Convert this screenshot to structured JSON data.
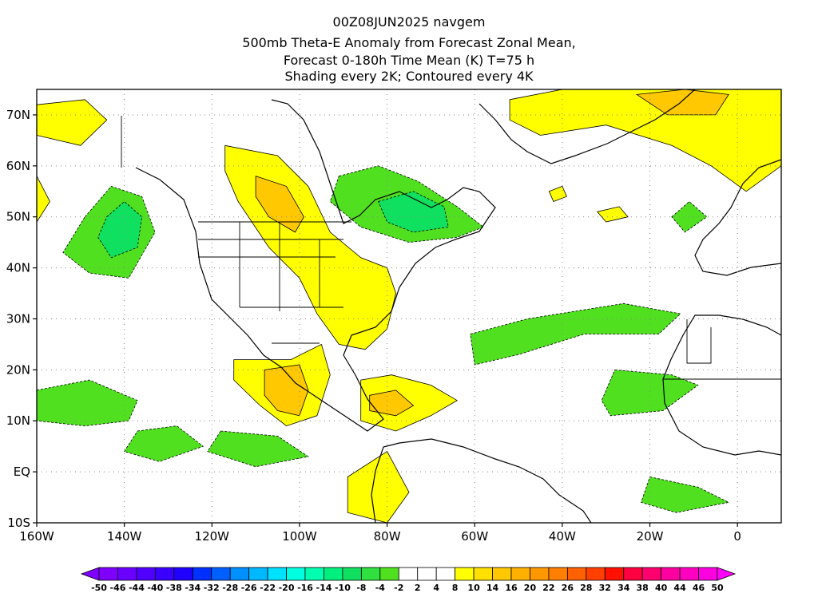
{
  "title_lines": [
    "00Z08JUN2025 navgem",
    "500mb Theta-E Anomaly from Forecast Zonal Mean,",
    "Forecast 0-180h Time Mean (K) T=75 h",
    "Shading every 2K; Contoured every 4K"
  ],
  "lat_ticks": [
    {
      "lat": 70,
      "label": "70N"
    },
    {
      "lat": 60,
      "label": "60N"
    },
    {
      "lat": 50,
      "label": "50N"
    },
    {
      "lat": 40,
      "label": "40N"
    },
    {
      "lat": 30,
      "label": "30N"
    },
    {
      "lat": 20,
      "label": "20N"
    },
    {
      "lat": 10,
      "label": "10N"
    },
    {
      "lat": 0,
      "label": "EQ"
    },
    {
      "lat": -10,
      "label": "10S"
    }
  ],
  "lon_ticks": [
    {
      "lon": -160,
      "label": "160W"
    },
    {
      "lon": -140,
      "label": "140W"
    },
    {
      "lon": -120,
      "label": "120W"
    },
    {
      "lon": -100,
      "label": "100W"
    },
    {
      "lon": -80,
      "label": "80W"
    },
    {
      "lon": -60,
      "label": "60W"
    },
    {
      "lon": -40,
      "label": "40W"
    },
    {
      "lon": -20,
      "label": "20W"
    },
    {
      "lon": 0,
      "label": "0"
    }
  ],
  "colorbar": {
    "labels": [
      "-50",
      "-46",
      "-44",
      "-40",
      "-38",
      "-34",
      "-32",
      "-28",
      "-26",
      "-22",
      "-20",
      "-16",
      "-14",
      "-10",
      "-8",
      "-4",
      "-2",
      "2",
      "4",
      "8",
      "10",
      "14",
      "16",
      "20",
      "22",
      "26",
      "28",
      "32",
      "34",
      "38",
      "40",
      "44",
      "46",
      "50"
    ],
    "colors": [
      "#8000ff",
      "#6a00ff",
      "#5000ff",
      "#3a00ff",
      "#2000ff",
      "#0030ff",
      "#0060ff",
      "#0090ff",
      "#00b8ff",
      "#00e0ff",
      "#00ffe0",
      "#00ffb0",
      "#00f080",
      "#10e060",
      "#30e040",
      "#50e020",
      "#ffffff",
      "#ffffff",
      "#ffffff",
      "#ffff00",
      "#ffe000",
      "#ffc800",
      "#ffb000",
      "#ff9800",
      "#ff8000",
      "#ff6000",
      "#ff4000",
      "#ff1000",
      "#ff0040",
      "#ff0070",
      "#ff00a0",
      "#ff00c0",
      "#ff00e0"
    ]
  },
  "anomaly_regions": [
    {
      "level": "green",
      "color": "#50e020",
      "points": [
        [
          -149,
          50
        ],
        [
          -143,
          56
        ],
        [
          -136,
          54
        ],
        [
          -133,
          47
        ],
        [
          -139,
          38
        ],
        [
          -148,
          39
        ],
        [
          -154,
          43
        ]
      ]
    },
    {
      "level": "green2",
      "color": "#10e060",
      "points": [
        [
          -144,
          50
        ],
        [
          -140,
          53
        ],
        [
          -136,
          50
        ],
        [
          -137,
          44
        ],
        [
          -143,
          42
        ],
        [
          -146,
          46
        ]
      ]
    },
    {
      "level": "green",
      "color": "#50e020",
      "points": [
        [
          -91,
          58
        ],
        [
          -82,
          60
        ],
        [
          -73,
          57
        ],
        [
          -64,
          52
        ],
        [
          -58,
          48
        ],
        [
          -64,
          46
        ],
        [
          -75,
          45
        ],
        [
          -86,
          48
        ],
        [
          -93,
          53
        ]
      ]
    },
    {
      "level": "green2",
      "color": "#10e060",
      "points": [
        [
          -82,
          53
        ],
        [
          -74,
          55
        ],
        [
          -67,
          52
        ],
        [
          -66,
          48
        ],
        [
          -74,
          47
        ],
        [
          -80,
          49
        ]
      ]
    },
    {
      "level": "green",
      "color": "#50e020",
      "points": [
        [
          -15,
          50
        ],
        [
          -11,
          53
        ],
        [
          -7,
          50
        ],
        [
          -12,
          47
        ]
      ]
    },
    {
      "level": "green",
      "color": "#50e020",
      "points": [
        [
          -61,
          27
        ],
        [
          -48,
          30
        ],
        [
          -26,
          33
        ],
        [
          -13,
          31
        ],
        [
          -18,
          27
        ],
        [
          -35,
          27
        ],
        [
          -50,
          23
        ],
        [
          -60,
          21
        ]
      ]
    },
    {
      "level": "green",
      "color": "#50e020",
      "points": [
        [
          -160,
          16
        ],
        [
          -148,
          18
        ],
        [
          -137,
          14
        ],
        [
          -139,
          10
        ],
        [
          -149,
          9
        ],
        [
          -160,
          10
        ]
      ]
    },
    {
      "level": "green",
      "color": "#50e020",
      "points": [
        [
          -137,
          8
        ],
        [
          -128,
          9
        ],
        [
          -122,
          5
        ],
        [
          -132,
          2
        ],
        [
          -140,
          4
        ]
      ]
    },
    {
      "level": "green",
      "color": "#50e020",
      "points": [
        [
          -118,
          8
        ],
        [
          -105,
          7
        ],
        [
          -98,
          3
        ],
        [
          -110,
          1
        ],
        [
          -121,
          4
        ]
      ]
    },
    {
      "level": "green",
      "color": "#50e020",
      "points": [
        [
          -28,
          20
        ],
        [
          -15,
          19
        ],
        [
          -9,
          17
        ],
        [
          -17,
          12
        ],
        [
          -29,
          11
        ],
        [
          -31,
          14
        ]
      ]
    },
    {
      "level": "green",
      "color": "#50e020",
      "points": [
        [
          -20,
          -1
        ],
        [
          -9,
          -3
        ],
        [
          -2,
          -6
        ],
        [
          -14,
          -8
        ],
        [
          -22,
          -6
        ]
      ]
    },
    {
      "level": "yellow",
      "color": "#ffff00",
      "points": [
        [
          -160,
          72
        ],
        [
          -149,
          73
        ],
        [
          -144,
          69
        ],
        [
          -150,
          64
        ],
        [
          -160,
          66
        ]
      ]
    },
    {
      "level": "yellow",
      "color": "#ffff00",
      "points": [
        [
          -160,
          58
        ],
        [
          -157,
          53
        ],
        [
          -160,
          49
        ]
      ]
    },
    {
      "level": "yellow",
      "color": "#ffff00",
      "points": [
        [
          -117,
          64
        ],
        [
          -105,
          62
        ],
        [
          -98,
          56
        ],
        [
          -93,
          47
        ],
        [
          -86,
          42
        ],
        [
          -80,
          40
        ],
        [
          -78,
          35
        ],
        [
          -80,
          28
        ],
        [
          -85,
          24
        ],
        [
          -91,
          25
        ],
        [
          -96,
          31
        ],
        [
          -100,
          38
        ],
        [
          -107,
          44
        ],
        [
          -114,
          53
        ],
        [
          -117,
          59
        ]
      ]
    },
    {
      "level": "orange",
      "color": "#ffc800",
      "points": [
        [
          -110,
          58
        ],
        [
          -103,
          56
        ],
        [
          -99,
          50
        ],
        [
          -101,
          47
        ],
        [
          -107,
          50
        ],
        [
          -110,
          54
        ]
      ]
    },
    {
      "level": "yellow",
      "color": "#ffff00",
      "points": [
        [
          -115,
          22
        ],
        [
          -102,
          22
        ],
        [
          -95,
          25
        ],
        [
          -93,
          19
        ],
        [
          -96,
          11
        ],
        [
          -103,
          9
        ],
        [
          -109,
          13
        ],
        [
          -115,
          18
        ]
      ]
    },
    {
      "level": "orange",
      "color": "#ffc800",
      "points": [
        [
          -108,
          20
        ],
        [
          -100,
          21
        ],
        [
          -98,
          16
        ],
        [
          -100,
          11
        ],
        [
          -105,
          12
        ],
        [
          -108,
          15
        ]
      ]
    },
    {
      "level": "yellow",
      "color": "#ffff00",
      "points": [
        [
          -86,
          18
        ],
        [
          -79,
          19
        ],
        [
          -70,
          17
        ],
        [
          -64,
          14
        ],
        [
          -70,
          11
        ],
        [
          -78,
          8
        ],
        [
          -86,
          10
        ]
      ]
    },
    {
      "level": "orange",
      "color": "#ffc800",
      "points": [
        [
          -84,
          15
        ],
        [
          -78,
          16
        ],
        [
          -74,
          13
        ],
        [
          -78,
          11
        ],
        [
          -84,
          12
        ]
      ]
    },
    {
      "level": "yellow",
      "color": "#ffff00",
      "points": [
        [
          -89,
          -1
        ],
        [
          -80,
          4
        ],
        [
          -75,
          -4
        ],
        [
          -80,
          -10
        ],
        [
          -89,
          -8
        ]
      ]
    },
    {
      "level": "yellow",
      "color": "#ffff00",
      "points": [
        [
          -52,
          73
        ],
        [
          -40,
          75
        ],
        [
          -20,
          75
        ],
        [
          -10,
          75
        ],
        [
          10,
          75
        ],
        [
          10,
          60
        ],
        [
          2,
          55
        ],
        [
          -6,
          60
        ],
        [
          -15,
          64
        ],
        [
          -30,
          68
        ],
        [
          -45,
          66
        ],
        [
          -52,
          69
        ]
      ]
    },
    {
      "level": "orange",
      "color": "#ffc800",
      "points": [
        [
          -23,
          74
        ],
        [
          -12,
          75
        ],
        [
          -2,
          74
        ],
        [
          -5,
          70
        ],
        [
          -16,
          70
        ]
      ]
    },
    {
      "level": "yellow",
      "color": "#ffff00",
      "points": [
        [
          -32,
          51
        ],
        [
          -27,
          52
        ],
        [
          -25,
          50
        ],
        [
          -30,
          49
        ]
      ]
    },
    {
      "level": "yellow",
      "color": "#ffff00",
      "points": [
        [
          -43,
          55
        ],
        [
          -40,
          56
        ],
        [
          -39,
          54
        ],
        [
          -42,
          53
        ]
      ]
    }
  ]
}
